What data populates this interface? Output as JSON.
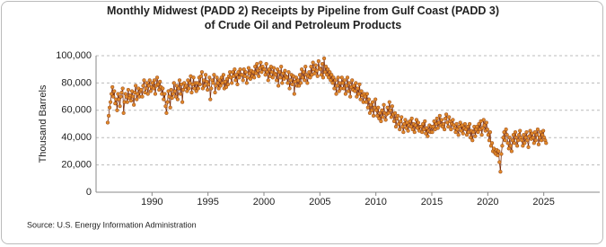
{
  "chart_data": {
    "type": "line",
    "title": "Monthly Midwest (PADD 2) Receipts by Pipeline from Gulf Coast (PADD 3) of Crude Oil and Petroleum Products",
    "y_label": "Thousand Barrels",
    "source": "Source: U.S. Energy Information Administration",
    "xlim": [
      1985,
      2030
    ],
    "xticks": [
      1990,
      1995,
      2000,
      2005,
      2010,
      2015,
      2020,
      2025
    ],
    "ylim": [
      0,
      100000
    ],
    "yticks": [
      0,
      {
        "value": 20000,
        "label": "20,000"
      },
      {
        "value": 40000,
        "label": "40,000"
      },
      {
        "value": 60000,
        "label": "60,000"
      },
      {
        "value": 80000,
        "label": "80,000"
      },
      {
        "value": 100000,
        "label": "100,000"
      }
    ],
    "grid": true,
    "line_color": "#7a2e0e",
    "marker_color": "#e0882a",
    "x": [
      1986.04,
      1986.13,
      1986.21,
      1986.29,
      1986.38,
      1986.46,
      1986.54,
      1986.63,
      1986.71,
      1986.79,
      1986.88,
      1986.96,
      1987.04,
      1987.13,
      1987.21,
      1987.29,
      1987.38,
      1987.46,
      1987.54,
      1987.63,
      1987.71,
      1987.79,
      1987.88,
      1987.96,
      1988.04,
      1988.13,
      1988.21,
      1988.29,
      1988.38,
      1988.46,
      1988.54,
      1988.63,
      1988.71,
      1988.79,
      1988.88,
      1988.96,
      1989.04,
      1989.13,
      1989.21,
      1989.29,
      1989.38,
      1989.46,
      1989.54,
      1989.63,
      1989.71,
      1989.79,
      1989.88,
      1989.96,
      1990.04,
      1990.13,
      1990.21,
      1990.29,
      1990.38,
      1990.46,
      1990.54,
      1990.63,
      1990.71,
      1990.79,
      1990.88,
      1990.96,
      1991.04,
      1991.13,
      1991.21,
      1991.29,
      1991.38,
      1991.46,
      1991.54,
      1991.63,
      1991.71,
      1991.79,
      1991.88,
      1991.96,
      1992.04,
      1992.13,
      1992.21,
      1992.29,
      1992.38,
      1992.46,
      1992.54,
      1992.63,
      1992.71,
      1992.79,
      1992.88,
      1992.96,
      1993.04,
      1993.13,
      1993.21,
      1993.29,
      1993.38,
      1993.46,
      1993.54,
      1993.63,
      1993.71,
      1993.79,
      1993.88,
      1993.96,
      1994.04,
      1994.13,
      1994.21,
      1994.29,
      1994.38,
      1994.46,
      1994.54,
      1994.63,
      1994.71,
      1994.79,
      1994.88,
      1994.96,
      1995.04,
      1995.13,
      1995.21,
      1995.29,
      1995.38,
      1995.46,
      1995.54,
      1995.63,
      1995.71,
      1995.79,
      1995.88,
      1995.96,
      1996.04,
      1996.13,
      1996.21,
      1996.29,
      1996.38,
      1996.46,
      1996.54,
      1996.63,
      1996.71,
      1996.79,
      1996.88,
      1996.96,
      1997.04,
      1997.13,
      1997.21,
      1997.29,
      1997.38,
      1997.46,
      1997.54,
      1997.63,
      1997.71,
      1997.79,
      1997.88,
      1997.96,
      1998.04,
      1998.13,
      1998.21,
      1998.29,
      1998.38,
      1998.46,
      1998.54,
      1998.63,
      1998.71,
      1998.79,
      1998.88,
      1998.96,
      1999.04,
      1999.13,
      1999.21,
      1999.29,
      1999.38,
      1999.46,
      1999.54,
      1999.63,
      1999.71,
      1999.79,
      1999.88,
      1999.96,
      2000.04,
      2000.13,
      2000.21,
      2000.29,
      2000.38,
      2000.46,
      2000.54,
      2000.63,
      2000.71,
      2000.79,
      2000.88,
      2000.96,
      2001.04,
      2001.13,
      2001.21,
      2001.29,
      2001.38,
      2001.46,
      2001.54,
      2001.63,
      2001.71,
      2001.79,
      2001.88,
      2001.96,
      2002.04,
      2002.13,
      2002.21,
      2002.29,
      2002.38,
      2002.46,
      2002.54,
      2002.63,
      2002.71,
      2002.79,
      2002.88,
      2002.96,
      2003.04,
      2003.13,
      2003.21,
      2003.29,
      2003.38,
      2003.46,
      2003.54,
      2003.63,
      2003.71,
      2003.79,
      2003.88,
      2003.96,
      2004.04,
      2004.13,
      2004.21,
      2004.29,
      2004.38,
      2004.46,
      2004.54,
      2004.63,
      2004.71,
      2004.79,
      2004.88,
      2004.96,
      2005.04,
      2005.13,
      2005.21,
      2005.29,
      2005.38,
      2005.46,
      2005.54,
      2005.63,
      2005.71,
      2005.79,
      2005.88,
      2005.96,
      2006.04,
      2006.13,
      2006.21,
      2006.29,
      2006.38,
      2006.46,
      2006.54,
      2006.63,
      2006.71,
      2006.79,
      2006.88,
      2006.96,
      2007.04,
      2007.13,
      2007.21,
      2007.29,
      2007.38,
      2007.46,
      2007.54,
      2007.63,
      2007.71,
      2007.79,
      2007.88,
      2007.96,
      2008.04,
      2008.13,
      2008.21,
      2008.29,
      2008.38,
      2008.46,
      2008.54,
      2008.63,
      2008.71,
      2008.79,
      2008.88,
      2008.96,
      2009.04,
      2009.13,
      2009.21,
      2009.29,
      2009.38,
      2009.46,
      2009.54,
      2009.63,
      2009.71,
      2009.79,
      2009.88,
      2009.96,
      2010.04,
      2010.13,
      2010.21,
      2010.29,
      2010.38,
      2010.46,
      2010.54,
      2010.63,
      2010.71,
      2010.79,
      2010.88,
      2010.96,
      2011.04,
      2011.13,
      2011.21,
      2011.29,
      2011.38,
      2011.46,
      2011.54,
      2011.63,
      2011.71,
      2011.79,
      2011.88,
      2011.96,
      2012.04,
      2012.13,
      2012.21,
      2012.29,
      2012.38,
      2012.46,
      2012.54,
      2012.63,
      2012.71,
      2012.79,
      2012.88,
      2012.96,
      2013.04,
      2013.13,
      2013.21,
      2013.29,
      2013.38,
      2013.46,
      2013.54,
      2013.63,
      2013.71,
      2013.79,
      2013.88,
      2013.96,
      2014.04,
      2014.13,
      2014.21,
      2014.29,
      2014.38,
      2014.46,
      2014.54,
      2014.63,
      2014.71,
      2014.79,
      2014.88,
      2014.96,
      2015.04,
      2015.13,
      2015.21,
      2015.29,
      2015.38,
      2015.46,
      2015.54,
      2015.63,
      2015.71,
      2015.79,
      2015.88,
      2015.96,
      2016.04,
      2016.13,
      2016.21,
      2016.29,
      2016.38,
      2016.46,
      2016.54,
      2016.63,
      2016.71,
      2016.79,
      2016.88,
      2016.96,
      2017.04,
      2017.13,
      2017.21,
      2017.29,
      2017.38,
      2017.46,
      2017.54,
      2017.63,
      2017.71,
      2017.79,
      2017.88,
      2017.96,
      2018.04,
      2018.13,
      2018.21,
      2018.29,
      2018.38,
      2018.46,
      2018.54,
      2018.63,
      2018.71,
      2018.79,
      2018.88,
      2018.96,
      2019.04,
      2019.13,
      2019.21,
      2019.29,
      2019.38,
      2019.46,
      2019.54,
      2019.63,
      2019.71,
      2019.79,
      2019.88,
      2019.96,
      2020.04,
      2020.13,
      2020.21,
      2020.29,
      2020.38,
      2020.46,
      2020.54,
      2020.63,
      2020.71,
      2020.79,
      2020.88,
      2020.96,
      2021.04,
      2021.13,
      2021.21,
      2021.29,
      2021.38,
      2021.46,
      2021.54,
      2021.63,
      2021.71,
      2021.79,
      2021.88,
      2021.96,
      2022.04,
      2022.13,
      2022.21,
      2022.29,
      2022.38,
      2022.46,
      2022.54,
      2022.63,
      2022.71,
      2022.79,
      2022.88,
      2022.96,
      2023.04,
      2023.13,
      2023.21,
      2023.29,
      2023.38,
      2023.46,
      2023.54,
      2023.63,
      2023.71,
      2023.79,
      2023.88,
      2023.96,
      2024.04,
      2024.13,
      2024.21,
      2024.29,
      2024.38,
      2024.46,
      2024.54,
      2024.63,
      2024.71,
      2024.79,
      2024.88,
      2024.96,
      2025.04,
      2025.13,
      2025.21
    ],
    "values": [
      51000,
      56000,
      62000,
      66000,
      72000,
      77000,
      70000,
      74000,
      65000,
      68000,
      60000,
      72000,
      68000,
      63000,
      70000,
      73000,
      76000,
      58000,
      66000,
      72000,
      70000,
      66000,
      75000,
      69000,
      71000,
      67000,
      74000,
      70000,
      64000,
      73000,
      78000,
      68000,
      72000,
      76000,
      70000,
      74000,
      75000,
      70000,
      78000,
      82000,
      73000,
      76000,
      80000,
      72000,
      78000,
      82000,
      74000,
      77000,
      80000,
      76000,
      82000,
      72000,
      78000,
      84000,
      79000,
      75000,
      81000,
      77000,
      72000,
      76000,
      68000,
      72000,
      63000,
      58000,
      66000,
      74000,
      70000,
      62000,
      75000,
      69000,
      72000,
      80000,
      74000,
      70000,
      78000,
      68000,
      76000,
      82000,
      72000,
      79000,
      66000,
      75000,
      80000,
      77000,
      78000,
      74000,
      82000,
      76000,
      80000,
      85000,
      73000,
      79000,
      84000,
      76000,
      80000,
      74000,
      80000,
      76000,
      84000,
      79000,
      85000,
      88000,
      76000,
      82000,
      78000,
      86000,
      81000,
      75000,
      79000,
      84000,
      68000,
      76000,
      82000,
      80000,
      86000,
      73000,
      78000,
      84000,
      80000,
      76000,
      82000,
      78000,
      84000,
      80000,
      86000,
      76000,
      81000,
      77000,
      83000,
      79000,
      85000,
      88000,
      84000,
      80000,
      88000,
      85000,
      90000,
      82000,
      86000,
      79000,
      88000,
      84000,
      90000,
      86000,
      86000,
      82000,
      90000,
      85000,
      88000,
      80000,
      84000,
      91000,
      87000,
      83000,
      89000,
      85000,
      88000,
      84000,
      92000,
      87000,
      94000,
      89000,
      85000,
      91000,
      95000,
      88000,
      92000,
      90000,
      90000,
      86000,
      94000,
      88000,
      82000,
      90000,
      85000,
      92000,
      88000,
      84000,
      91000,
      87000,
      86000,
      82000,
      90000,
      78000,
      88000,
      84000,
      92000,
      80000,
      87000,
      83000,
      89000,
      85000,
      84000,
      80000,
      88000,
      76000,
      82000,
      86000,
      79000,
      85000,
      72000,
      81000,
      84000,
      78000,
      82000,
      78000,
      86000,
      80000,
      90000,
      84000,
      88000,
      82000,
      92000,
      86000,
      80000,
      85000,
      88000,
      84000,
      92000,
      86000,
      95000,
      90000,
      87000,
      93000,
      89000,
      85000,
      96000,
      91000,
      90000,
      86000,
      94000,
      84000,
      98000,
      88000,
      92000,
      86000,
      90000,
      84000,
      88000,
      82000,
      86000,
      80000,
      84000,
      76000,
      82000,
      72000,
      78000,
      84000,
      74000,
      80000,
      76000,
      84000,
      80000,
      76000,
      82000,
      72000,
      78000,
      84000,
      74000,
      80000,
      70000,
      77000,
      82000,
      75000,
      78000,
      74000,
      80000,
      70000,
      76000,
      72000,
      79000,
      68000,
      74000,
      71000,
      66000,
      72000,
      70000,
      66000,
      72000,
      62000,
      68000,
      58000,
      64000,
      60000,
      66000,
      56000,
      62000,
      68000,
      60000,
      56000,
      62000,
      54000,
      58000,
      52000,
      60000,
      55000,
      64000,
      58000,
      53000,
      57000,
      62000,
      58000,
      66000,
      60000,
      55000,
      63000,
      57000,
      52000,
      58000,
      48000,
      54000,
      56000,
      50000,
      46000,
      52000,
      55000,
      48000,
      44000,
      50000,
      53000,
      47000,
      51000,
      45000,
      49000,
      52000,
      48000,
      54000,
      46000,
      50000,
      44000,
      49000,
      53000,
      47000,
      51000,
      45000,
      48000,
      48000,
      44000,
      50000,
      46000,
      52000,
      43000,
      47000,
      41000,
      45000,
      49000,
      44000,
      48000,
      44000,
      48000,
      52000,
      46000,
      50000,
      54000,
      47000,
      51000,
      56000,
      49000,
      53000,
      48000,
      50000,
      46000,
      54000,
      57000,
      51000,
      48000,
      55000,
      52000,
      46000,
      50000,
      53000,
      49000,
      47000,
      44000,
      50000,
      46000,
      42000,
      48000,
      51000,
      45000,
      49000,
      43000,
      47000,
      50000,
      46000,
      42000,
      48000,
      44000,
      50000,
      40000,
      45000,
      38000,
      44000,
      48000,
      41000,
      46000,
      48000,
      44000,
      50000,
      46000,
      52000,
      42000,
      47000,
      53000,
      49000,
      45000,
      51000,
      46000,
      42000,
      38000,
      44000,
      34000,
      36000,
      30000,
      32000,
      29000,
      28000,
      31000,
      27000,
      30000,
      22000,
      15000,
      28000,
      34000,
      40000,
      44000,
      38000,
      46000,
      42000,
      36000,
      32000,
      40000,
      34000,
      30000,
      38000,
      42000,
      36000,
      44000,
      40000,
      34000,
      38000,
      42000,
      45000,
      40000,
      38000,
      34000,
      42000,
      36000,
      40000,
      44000,
      38000,
      33000,
      41000,
      45000,
      39000,
      43000,
      40000,
      36000,
      44000,
      38000,
      42000,
      46000,
      35000,
      40000,
      44000,
      38000,
      42000,
      45000,
      40000,
      38000,
      36000
    ]
  }
}
